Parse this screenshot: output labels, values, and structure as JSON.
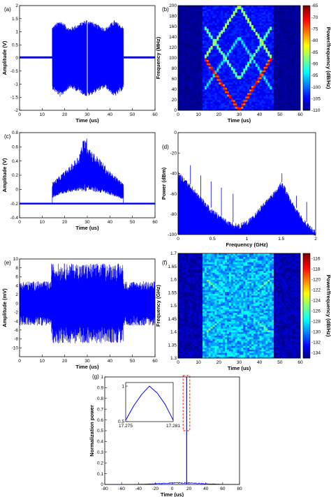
{
  "chart_data": [
    {
      "id": "a",
      "panel_label": "(a)",
      "type": "line",
      "xlabel": "Time (us)",
      "ylabel": "Amplitude (V)",
      "xlim": [
        0,
        60
      ],
      "ylim": [
        -2,
        2
      ],
      "xticks": [
        "0",
        "10",
        "20",
        "30",
        "40",
        "50",
        "60"
      ],
      "yticks": [
        "-2",
        "-1.5",
        "-1",
        "-0.5",
        "0",
        "0.5",
        "1",
        "1.5",
        "2"
      ],
      "series": [
        {
          "color": "#0000ff",
          "pulse_start_us": 14.5,
          "pulse_end_us": 46,
          "envelope_upper_V": [
            [
              14.5,
              1.2
            ],
            [
              18,
              1.45
            ],
            [
              22,
              1.15
            ],
            [
              26,
              1.3
            ],
            [
              30,
              1.5
            ],
            [
              34,
              1.3
            ],
            [
              38,
              1.15
            ],
            [
              42,
              1.45
            ],
            [
              46,
              1.2
            ]
          ],
          "envelope_lower_V": [
            [
              14.5,
              -1.2
            ],
            [
              18,
              -1.5
            ],
            [
              22,
              -1.15
            ],
            [
              26,
              -1.3
            ],
            [
              30,
              -1.5
            ],
            [
              34,
              -1.3
            ],
            [
              38,
              -1.15
            ],
            [
              42,
              -1.5
            ],
            [
              46,
              -1.2
            ]
          ],
          "baseline_V": 0.02
        }
      ]
    },
    {
      "id": "b",
      "panel_label": "(b)",
      "type": "heatmap",
      "xlabel": "Time (us)",
      "ylabel": "Frequency (MHz)",
      "xlim": [
        0,
        60
      ],
      "ylim": [
        0,
        200
      ],
      "xticks": [
        "0",
        "10",
        "20",
        "30",
        "40",
        "50",
        "60"
      ],
      "yticks": [
        "0",
        "20",
        "40",
        "60",
        "80",
        "100",
        "120",
        "140",
        "160",
        "180",
        "200"
      ],
      "colorbar": {
        "label": "Power/frequency (dB/Hz)",
        "min": -110,
        "max": -65,
        "ticks": [
          "-65",
          "-70",
          "-75",
          "-80",
          "-85",
          "-90",
          "-95",
          "-100",
          "-105",
          "-110"
        ]
      },
      "traces_MHz": [
        {
          "from": [
            13,
            100
          ],
          "to": [
            30,
            0
          ],
          "level": -67
        },
        {
          "from": [
            30,
            0
          ],
          "to": [
            46,
            100
          ],
          "level": -67
        },
        {
          "from": [
            13,
            100
          ],
          "to": [
            30,
            200
          ],
          "level": -82
        },
        {
          "from": [
            30,
            200
          ],
          "to": [
            46,
            100
          ],
          "level": -82
        },
        {
          "from": [
            13,
            160
          ],
          "to": [
            30,
            60
          ],
          "level": -85
        },
        {
          "from": [
            30,
            60
          ],
          "to": [
            46,
            160
          ],
          "level": -85
        },
        {
          "from": [
            13,
            40
          ],
          "to": [
            30,
            140
          ],
          "level": -90
        },
        {
          "from": [
            30,
            140
          ],
          "to": [
            46,
            40
          ],
          "level": -90
        }
      ]
    },
    {
      "id": "c",
      "panel_label": "(c)",
      "type": "line",
      "xlabel": "Time (us)",
      "ylabel": "Amplitude (V)",
      "xlim": [
        0,
        60
      ],
      "ylim": [
        -0.4,
        0.8
      ],
      "xticks": [
        "0",
        "10",
        "20",
        "30",
        "40",
        "50",
        "60"
      ],
      "yticks": [
        "-0.4",
        "-0.2",
        "0",
        "0.2",
        "0.4",
        "0.6",
        "0.8"
      ],
      "series": [
        {
          "color": "#0000ff",
          "baseline_V": -0.2,
          "pulse_start_us": 14.5,
          "pulse_end_us": 46,
          "envelope_upper_V": [
            [
              14.5,
              0.1
            ],
            [
              18,
              0.2
            ],
            [
              22,
              0.32
            ],
            [
              26,
              0.48
            ],
            [
              29,
              0.78
            ],
            [
              32,
              0.55
            ],
            [
              36,
              0.42
            ],
            [
              40,
              0.25
            ],
            [
              44,
              0.15
            ],
            [
              46,
              0.08
            ]
          ],
          "envelope_lower_V": [
            [
              14.5,
              -0.12
            ],
            [
              18,
              -0.07
            ],
            [
              22,
              -0.04
            ],
            [
              26,
              -0.02
            ],
            [
              29,
              -0.03
            ],
            [
              32,
              -0.03
            ],
            [
              36,
              -0.05
            ],
            [
              40,
              -0.08
            ],
            [
              44,
              -0.12
            ],
            [
              46,
              -0.14
            ]
          ]
        }
      ]
    },
    {
      "id": "d",
      "panel_label": "(d)",
      "type": "line",
      "xlabel": "Frequency (GHz)",
      "ylabel": "Power (dBm)",
      "xlim": [
        0,
        2
      ],
      "ylim": [
        -100,
        0
      ],
      "xticks": [
        "0",
        "0.5",
        "1",
        "1.5",
        "2"
      ],
      "yticks": [
        "-100",
        "-80",
        "-60",
        "-40",
        "-20",
        "0"
      ],
      "series": [
        {
          "color": "#0000ff",
          "envelope_dBm": [
            [
              0,
              -38
            ],
            [
              0.1,
              -45
            ],
            [
              0.2,
              -52
            ],
            [
              0.3,
              -60
            ],
            [
              0.4,
              -68
            ],
            [
              0.5,
              -75
            ],
            [
              0.6,
              -80
            ],
            [
              0.7,
              -85
            ],
            [
              0.8,
              -88
            ],
            [
              0.9,
              -89
            ],
            [
              1.0,
              -86
            ],
            [
              1.1,
              -80
            ],
            [
              1.2,
              -72
            ],
            [
              1.3,
              -64
            ],
            [
              1.4,
              -57
            ],
            [
              1.5,
              -48
            ],
            [
              1.55,
              -52
            ],
            [
              1.6,
              -60
            ],
            [
              1.7,
              -72
            ],
            [
              1.8,
              -82
            ],
            [
              1.9,
              -90
            ],
            [
              2.0,
              -96
            ]
          ],
          "spurs": [
            [
              0.18,
              -32
            ],
            [
              0.33,
              -42
            ],
            [
              0.48,
              -48
            ],
            [
              0.63,
              -54
            ],
            [
              0.8,
              -60
            ],
            [
              1.51,
              -40
            ],
            [
              1.6,
              -60
            ],
            [
              1.72,
              -62
            ],
            [
              1.87,
              -68
            ]
          ]
        }
      ]
    },
    {
      "id": "e",
      "panel_label": "(e)",
      "type": "line",
      "xlabel": "Time (us)",
      "ylabel": "Amplitude (mV)",
      "xlim": [
        0,
        60
      ],
      "ylim": [
        -12,
        10
      ],
      "xticks": [
        "0",
        "10",
        "20",
        "30",
        "40",
        "50",
        "60"
      ],
      "yticks": [
        "-10",
        "-8",
        "-6",
        "-4",
        "-2",
        "0",
        "2",
        "4",
        "6",
        "8",
        "10"
      ],
      "series": [
        {
          "color": "#0000ff",
          "noise_amplitude_mV": 5,
          "pulse_start_us": 14,
          "pulse_end_us": 46,
          "pulse_amplitude_mV": 9
        }
      ]
    },
    {
      "id": "f",
      "panel_label": "(f)",
      "type": "heatmap",
      "xlabel": "Time (us)",
      "ylabel": "Frequency (GHz)",
      "xlim": [
        0,
        60
      ],
      "ylim": [
        1.3,
        1.7
      ],
      "xticks": [
        "0",
        "10",
        "20",
        "30",
        "40",
        "50",
        "60"
      ],
      "yticks": [
        "1.3",
        "1.35",
        "1.4",
        "1.45",
        "1.5",
        "1.55",
        "1.6",
        "1.65",
        "1.7"
      ],
      "colorbar": {
        "label": "Power/frequency (dB/Hz)",
        "min": -135,
        "max": -115,
        "ticks": [
          "-116",
          "-118",
          "-120",
          "-122",
          "-124",
          "-126",
          "-128",
          "-130",
          "-132",
          "-134"
        ]
      },
      "traces_GHz": [
        {
          "from": [
            14,
            1.4
          ],
          "to": [
            45,
            1.6
          ],
          "level": -124
        },
        {
          "from": [
            14,
            1.6
          ],
          "to": [
            45,
            1.4
          ],
          "level": -124
        },
        {
          "from": [
            14,
            1.5
          ],
          "to": [
            45,
            1.5
          ],
          "level": -128
        },
        {
          "from": [
            15,
            1.35
          ],
          "to": [
            30,
            1.44
          ],
          "level": -131
        },
        {
          "from": [
            30,
            1.36
          ],
          "to": [
            45,
            1.45
          ],
          "level": -131
        }
      ]
    },
    {
      "id": "g",
      "panel_label": "(g)",
      "type": "line",
      "xlabel": "Time (us)",
      "ylabel": "Normalization power",
      "xlim": [
        -80,
        80
      ],
      "ylim": [
        0,
        1
      ],
      "xticks": [
        "-80",
        "-60",
        "-40",
        "-20",
        "0",
        "20",
        "40",
        "60",
        "80"
      ],
      "yticks": [
        "0",
        "0.1",
        "0.2",
        "0.3",
        "0.4",
        "0.5",
        "0.6",
        "0.7",
        "0.8",
        "0.9",
        "1"
      ],
      "series": [
        {
          "color": "#0000ff",
          "peak_time_us": 17.278,
          "peak_value": 1,
          "sidelobe_level": 0.02,
          "highlight_box": {
            "x_range_us": [
              13,
              21
            ],
            "y_range": [
              0.5,
              1
            ],
            "color": "#ff0000"
          }
        }
      ],
      "inset": {
        "xlim": [
          17.275,
          17.281
        ],
        "ylim": [
          0.5,
          1.05
        ],
        "xticks": [
          "17.275",
          "17.281"
        ],
        "yticks": [
          "0.5",
          "1"
        ],
        "points": [
          [
            17.275,
            0.52
          ],
          [
            17.276,
            0.72
          ],
          [
            17.277,
            0.88
          ],
          [
            17.278,
            1.0
          ],
          [
            17.279,
            0.9
          ],
          [
            17.28,
            0.74
          ],
          [
            17.281,
            0.52
          ]
        ]
      }
    }
  ]
}
